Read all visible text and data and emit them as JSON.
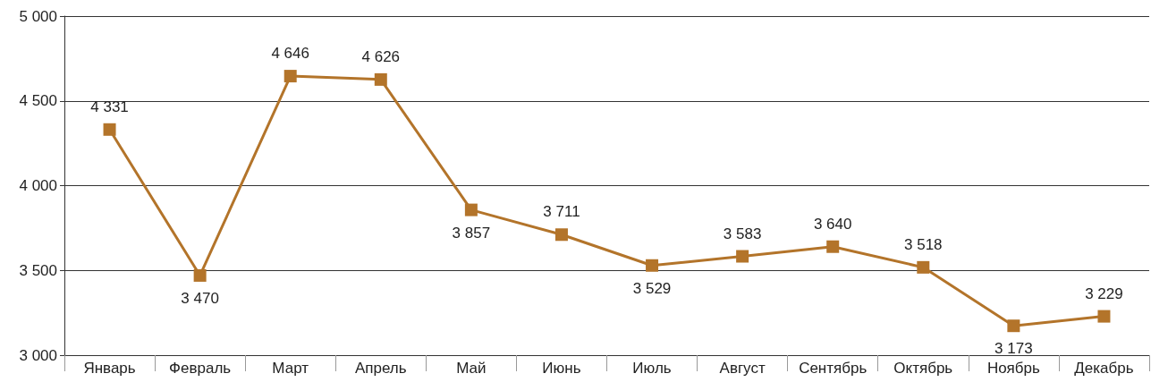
{
  "chart_data": {
    "type": "line",
    "categories": [
      "Январь",
      "Февраль",
      "Март",
      "Апрель",
      "Май",
      "Июнь",
      "Июль",
      "Август",
      "Сентябрь",
      "Октябрь",
      "Ноябрь",
      "Декабрь"
    ],
    "series": [
      {
        "color": "#b3742a",
        "values": [
          4331,
          3470,
          4646,
          4626,
          3857,
          3711,
          3529,
          3583,
          3640,
          3518,
          3173,
          3229
        ],
        "value_labels": [
          "4 331",
          "3 470",
          "4 646",
          "4 626",
          "3 857",
          "3 711",
          "3 529",
          "3 583",
          "3 640",
          "3 518",
          "3 173",
          "3 229"
        ]
      }
    ],
    "ylim": [
      3000,
      5000
    ],
    "yticks": [
      {
        "value": 3000,
        "label": "3 000"
      },
      {
        "value": 3500,
        "label": "3 500"
      },
      {
        "value": 4000,
        "label": "4 000"
      },
      {
        "value": 4500,
        "label": "4 500"
      },
      {
        "value": 5000,
        "label": "5 000"
      }
    ],
    "grid": "y",
    "marker": "square",
    "line_style": "solid"
  }
}
